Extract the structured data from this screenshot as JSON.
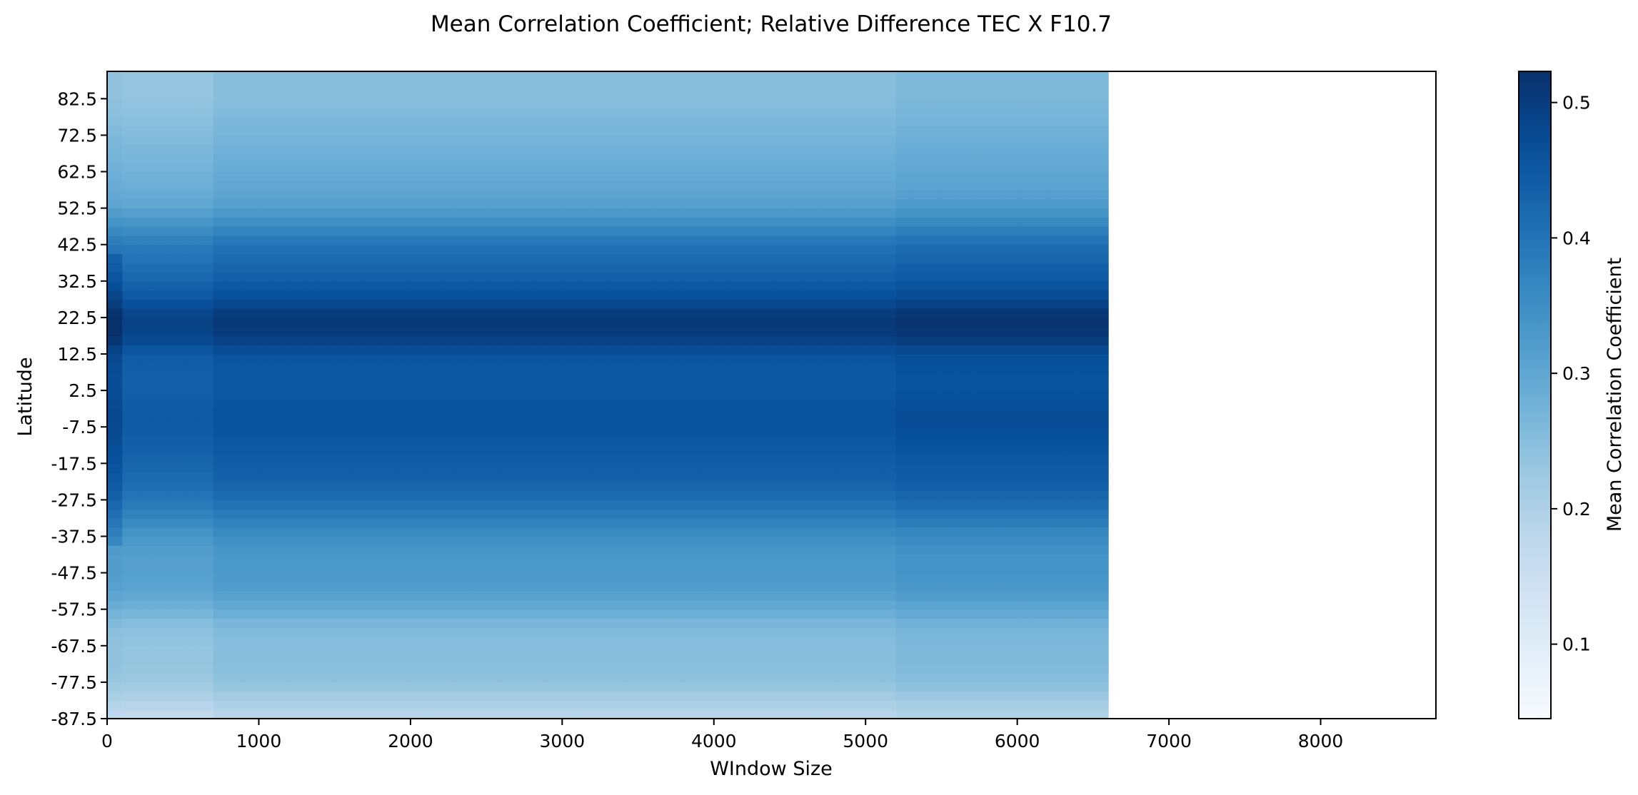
{
  "chart_data": {
    "type": "heatmap",
    "title": "Mean Correlation Coefficient; Relative Difference TEC X F10.7",
    "xlabel": "WIndow Size",
    "ylabel": "Latitude",
    "xlim": [
      0,
      8760
    ],
    "ylim": [
      -87.5,
      90
    ],
    "x_ticks": [
      0,
      1000,
      2000,
      3000,
      4000,
      5000,
      6000,
      7000,
      8000
    ],
    "y_ticks": [
      82.5,
      72.5,
      62.5,
      52.5,
      42.5,
      32.5,
      22.5,
      12.5,
      2.5,
      -7.5,
      -17.5,
      -27.5,
      -37.5,
      -47.5,
      -57.5,
      -67.5,
      -77.5,
      -87.5
    ],
    "y_tick_labels": [
      "82.5",
      "72.5",
      "62.5",
      "52.5",
      "42.5",
      "32.5",
      "22.5",
      "12.5",
      "2.5",
      "-7.5",
      "-17.5",
      "-27.5",
      "-37.5",
      "-47.5",
      "-57.5",
      "-67.5",
      "-77.5",
      "-87.5"
    ],
    "data_x_extent": [
      0,
      6600
    ],
    "colormap": "Blues",
    "colorbar": {
      "label": "Mean Correlation Coefficient",
      "vmin": 0.045,
      "vmax": 0.523,
      "ticks": [
        0.1,
        0.2,
        0.3,
        0.4,
        0.5
      ],
      "tick_labels": [
        "0.1",
        "0.2",
        "0.3",
        "0.4",
        "0.5"
      ]
    },
    "latitude_profile": {
      "latitudes": [
        -87.5,
        -82.5,
        -77.5,
        -72.5,
        -67.5,
        -62.5,
        -57.5,
        -52.5,
        -47.5,
        -42.5,
        -37.5,
        -32.5,
        -27.5,
        -22.5,
        -17.5,
        -12.5,
        -7.5,
        -2.5,
        2.5,
        7.5,
        12.5,
        17.5,
        22.5,
        27.5,
        32.5,
        37.5,
        42.5,
        47.5,
        52.5,
        57.5,
        62.5,
        67.5,
        72.5,
        77.5,
        82.5,
        87.5
      ],
      "values": [
        0.18,
        0.21,
        0.24,
        0.25,
        0.25,
        0.26,
        0.29,
        0.32,
        0.33,
        0.33,
        0.35,
        0.38,
        0.41,
        0.43,
        0.44,
        0.45,
        0.46,
        0.46,
        0.45,
        0.45,
        0.46,
        0.5,
        0.51,
        0.47,
        0.44,
        0.42,
        0.4,
        0.36,
        0.32,
        0.3,
        0.29,
        0.28,
        0.27,
        0.26,
        0.25,
        0.25
      ]
    }
  }
}
